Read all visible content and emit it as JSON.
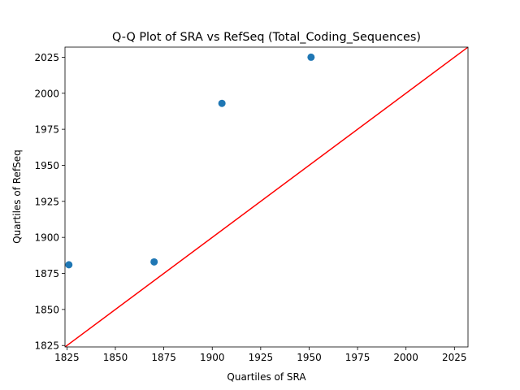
{
  "chart_data": {
    "type": "scatter",
    "title": "Q-Q Plot of SRA vs RefSeq (Total_Coding_Sequences)",
    "xlabel": "Quartiles of SRA",
    "ylabel": "Quartiles of RefSeq",
    "xlim": [
      1824,
      2032
    ],
    "ylim": [
      1824,
      2032
    ],
    "xticks": [
      1825,
      1850,
      1875,
      1900,
      1925,
      1950,
      1975,
      2000,
      2025
    ],
    "yticks": [
      1825,
      1850,
      1875,
      1900,
      1925,
      1950,
      1975,
      2000,
      2025
    ],
    "points": [
      {
        "x": 1826,
        "y": 1881
      },
      {
        "x": 1870,
        "y": 1883
      },
      {
        "x": 1905,
        "y": 1993
      },
      {
        "x": 1951,
        "y": 2025
      }
    ],
    "reference_line": {
      "x": [
        1824,
        2032
      ],
      "y": [
        1824,
        2032
      ],
      "color": "#ff0000"
    },
    "marker_color": "#1f77b4",
    "grid": false,
    "legend": "none"
  }
}
